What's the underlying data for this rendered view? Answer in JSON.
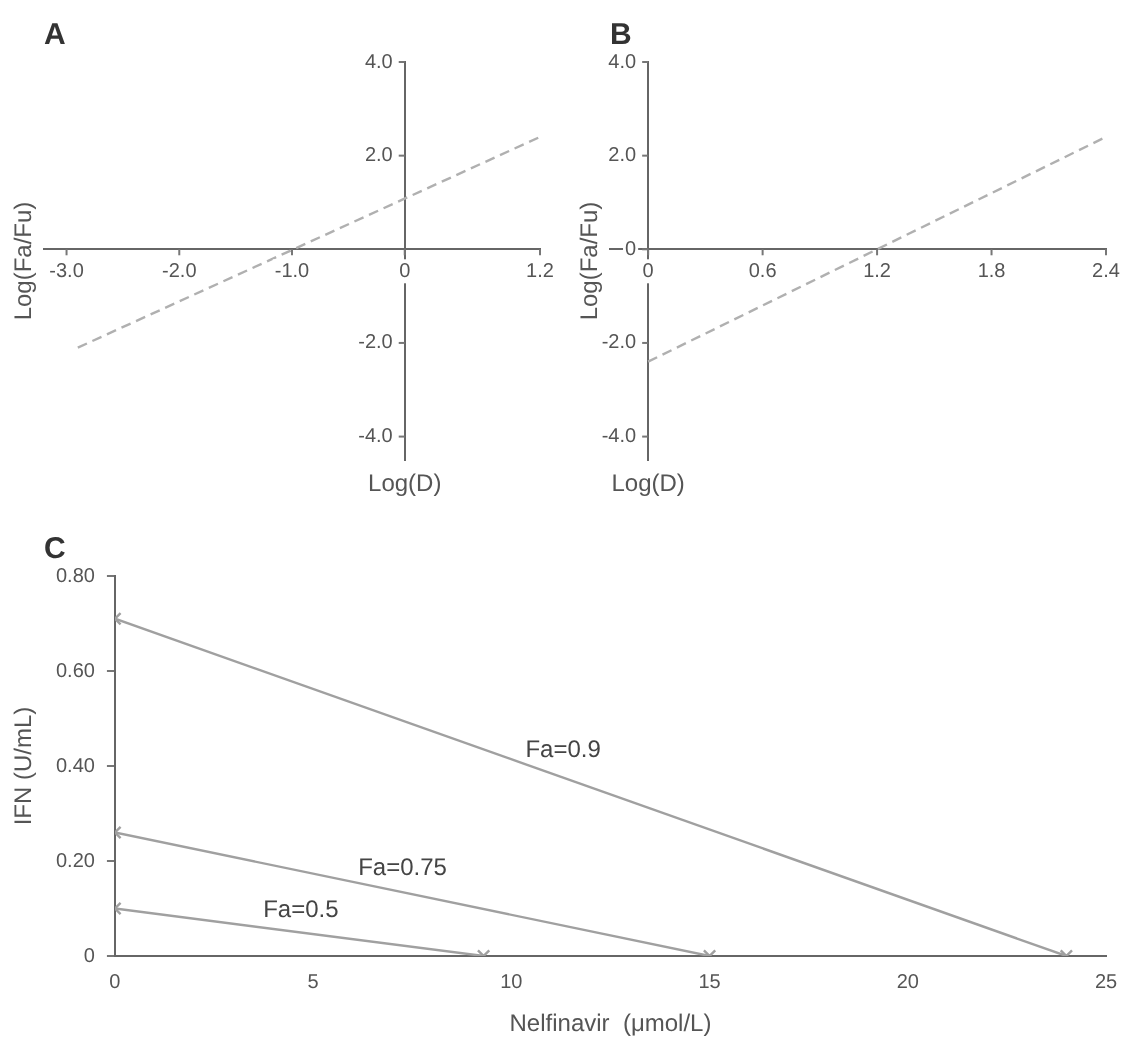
{
  "chart_data": [
    {
      "type": "line",
      "title": "A",
      "xlabel": "Log(D)",
      "ylabel": "Log(Fa/Fu)",
      "xlim": [
        -3.2,
        1.2
      ],
      "ylim": [
        -4.5,
        4.0
      ],
      "xticks": [
        {
          "value": -3,
          "label": "-3.0"
        },
        {
          "value": -2,
          "label": "-2.0"
        },
        {
          "value": -1,
          "label": "-1.0"
        },
        0,
        1.2
      ],
      "yticks": [
        {
          "value": -4,
          "label": "-4.0"
        },
        {
          "value": -2,
          "label": "-2.0"
        },
        {
          "value": 2,
          "label": "2.0"
        },
        {
          "value": 4,
          "label": "4.0"
        }
      ],
      "grid": false,
      "legend": false,
      "line_style": "dashed",
      "series": [
        {
          "color": "#b0b0b0",
          "x": [
            -2.9,
            1.2
          ],
          "values": [
            -2.1,
            2.4
          ]
        }
      ]
    },
    {
      "type": "line",
      "title": "B",
      "xlabel": "Log(D)",
      "ylabel": "Log(Fa/Fu)",
      "xlim": [
        -0.2,
        2.4
      ],
      "ylim": [
        -4.5,
        4.0
      ],
      "xticks": [
        0,
        0.6,
        1.2,
        1.8,
        2.4
      ],
      "yticks": [
        {
          "value": -4,
          "label": "-4.0"
        },
        {
          "value": -2,
          "label": "-2.0"
        },
        0,
        {
          "value": 2,
          "label": "2.0"
        },
        {
          "value": 4,
          "label": "4.0"
        }
      ],
      "grid": false,
      "legend": false,
      "line_style": "dashed",
      "series": [
        {
          "color": "#b0b0b0",
          "x": [
            0,
            2.4
          ],
          "values": [
            -2.4,
            2.4
          ]
        }
      ]
    },
    {
      "type": "line",
      "title": "C",
      "xlabel": "Nelfinavir  (μmol/L)",
      "ylabel": "IFN (U/mL)",
      "xlim": [
        0,
        25
      ],
      "ylim": [
        0,
        0.8
      ],
      "xticks": [
        0,
        5,
        10,
        15,
        20,
        25
      ],
      "yticks": [
        0,
        {
          "value": 0.2,
          "label": "0.20"
        },
        {
          "value": 0.4,
          "label": "0.40"
        },
        {
          "value": 0.6,
          "label": "0.60"
        },
        {
          "value": 0.8,
          "label": "0.80"
        }
      ],
      "grid": false,
      "legend": false,
      "marker": "cross",
      "line_style": "solid",
      "series": [
        {
          "name": "Fa=0.9",
          "color": "#a0a0a0",
          "x": [
            0,
            24
          ],
          "values": [
            0.71,
            0
          ]
        },
        {
          "name": "Fa=0.75",
          "color": "#a0a0a0",
          "x": [
            0,
            15
          ],
          "values": [
            0.26,
            0
          ]
        },
        {
          "name": "Fa=0.5",
          "color": "#a0a0a0",
          "x": [
            0,
            9.3
          ],
          "values": [
            0.1,
            0
          ]
        }
      ]
    }
  ]
}
